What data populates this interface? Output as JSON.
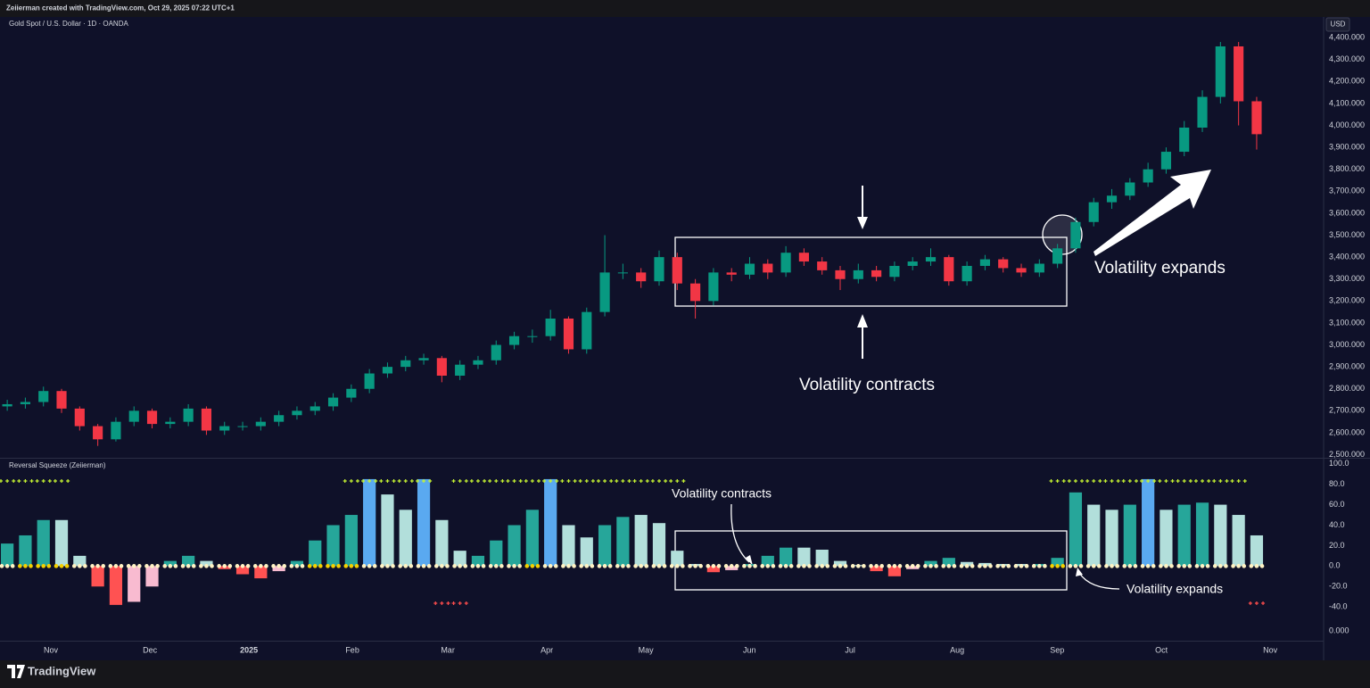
{
  "header": {
    "attribution": "Zeiierman created with TradingView.com, Oct 29, 2025 07:22 UTC+1",
    "symbol": "Gold Spot / U.S. Dollar · 1D · OANDA",
    "currency": "USD",
    "logo": "TradingView"
  },
  "chart_data": [
    {
      "type": "candlestick",
      "up_color": "#089981",
      "down_color": "#f23645",
      "annotations": [
        "Volatility contracts",
        "Volatility expands"
      ],
      "open": [
        2720,
        2730,
        2740,
        2790,
        2710,
        2630,
        2570,
        2650,
        2700,
        2640,
        2650,
        2710,
        2610,
        2630,
        2630,
        2650,
        2680,
        2700,
        2720,
        2760,
        2800,
        2870,
        2900,
        2930,
        2940,
        2860,
        2910,
        2930,
        3000,
        3040,
        3040,
        3120,
        2980,
        3150,
        3330,
        3330,
        3290,
        3400,
        3280,
        3200,
        3330,
        3320,
        3370,
        3330,
        3420,
        3380,
        3340,
        3300,
        3340,
        3310,
        3360,
        3380,
        3400,
        3290,
        3360,
        3390,
        3350,
        3330,
        3370,
        3440,
        3560,
        3650,
        3680,
        3740,
        3800,
        3880,
        3990,
        4130,
        4360,
        4110
      ],
      "high": [
        2750,
        2760,
        2810,
        2800,
        2720,
        2640,
        2670,
        2720,
        2710,
        2670,
        2730,
        2720,
        2650,
        2650,
        2670,
        2700,
        2720,
        2740,
        2780,
        2820,
        2890,
        2920,
        2950,
        2960,
        2950,
        2930,
        2950,
        3020,
        3060,
        3070,
        3160,
        3130,
        3170,
        3500,
        3370,
        3350,
        3430,
        3420,
        3300,
        3350,
        3350,
        3400,
        3390,
        3450,
        3440,
        3400,
        3360,
        3370,
        3360,
        3380,
        3400,
        3440,
        3410,
        3380,
        3410,
        3400,
        3370,
        3390,
        3460,
        3580,
        3670,
        3710,
        3760,
        3830,
        3900,
        4020,
        4160,
        4380,
        4380,
        4130
      ],
      "low": [
        2700,
        2710,
        2720,
        2690,
        2610,
        2540,
        2560,
        2630,
        2620,
        2620,
        2630,
        2590,
        2590,
        2610,
        2610,
        2630,
        2660,
        2680,
        2700,
        2740,
        2780,
        2850,
        2880,
        2910,
        2830,
        2840,
        2890,
        2910,
        2980,
        3010,
        3020,
        2960,
        2960,
        3130,
        3300,
        3260,
        3270,
        3250,
        3120,
        3180,
        3290,
        3300,
        3300,
        3310,
        3360,
        3320,
        3250,
        3280,
        3290,
        3290,
        3340,
        3360,
        3270,
        3270,
        3340,
        3330,
        3310,
        3310,
        3350,
        3420,
        3540,
        3620,
        3660,
        3720,
        3780,
        3860,
        3970,
        4100,
        4000,
        3890
      ],
      "close": [
        2730,
        2740,
        2790,
        2710,
        2630,
        2570,
        2650,
        2700,
        2640,
        2650,
        2710,
        2610,
        2630,
        2630,
        2650,
        2680,
        2700,
        2720,
        2760,
        2800,
        2870,
        2900,
        2930,
        2940,
        2860,
        2910,
        2930,
        3000,
        3040,
        3040,
        3120,
        2980,
        3150,
        3330,
        3330,
        3290,
        3400,
        3280,
        3200,
        3330,
        3320,
        3370,
        3330,
        3420,
        3380,
        3340,
        3300,
        3340,
        3310,
        3360,
        3380,
        3400,
        3290,
        3360,
        3390,
        3350,
        3330,
        3370,
        3440,
        3560,
        3650,
        3680,
        3740,
        3800,
        3880,
        3990,
        4130,
        4360,
        4110,
        3960
      ],
      "xlim": [
        -0.4,
        72.5
      ],
      "xticks": [
        {
          "value": 2.41,
          "label": "Nov"
        },
        {
          "value": 7.88,
          "label": "Dec"
        },
        {
          "value": 13.35,
          "label": "2025"
        },
        {
          "value": 19.06,
          "label": "Feb"
        },
        {
          "value": 24.33,
          "label": "Mar"
        },
        {
          "value": 29.8,
          "label": "Apr"
        },
        {
          "value": 35.27,
          "label": "May"
        },
        {
          "value": 40.99,
          "label": "Jun"
        },
        {
          "value": 46.55,
          "label": "Jul"
        },
        {
          "value": 52.46,
          "label": "Aug"
        },
        {
          "value": 57.98,
          "label": "Sep"
        },
        {
          "value": 63.74,
          "label": "Oct"
        },
        {
          "value": 69.75,
          "label": "Nov"
        }
      ],
      "ylim": [
        2490,
        4490
      ],
      "yticks": [
        {
          "value": 2500,
          "label": "2,500.000"
        },
        {
          "value": 2600,
          "label": "2,600.000"
        },
        {
          "value": 2700,
          "label": "2,700.000"
        },
        {
          "value": 2800,
          "label": "2,800.000"
        },
        {
          "value": 2900,
          "label": "2,900.000"
        },
        {
          "value": 3000,
          "label": "3,000.000"
        },
        {
          "value": 3100,
          "label": "3,100.000"
        },
        {
          "value": 3200,
          "label": "3,200.000"
        },
        {
          "value": 3300,
          "label": "3,300.000"
        },
        {
          "value": 3400,
          "label": "3,400.000"
        },
        {
          "value": 3500,
          "label": "3,500.000"
        },
        {
          "value": 3600,
          "label": "3,600.000"
        },
        {
          "value": 3700,
          "label": "3,700.000"
        },
        {
          "value": 3800,
          "label": "3,800.000"
        },
        {
          "value": 3900,
          "label": "3,900.000"
        },
        {
          "value": 4000,
          "label": "4,000.000"
        },
        {
          "value": 4100,
          "label": "4,100.000"
        },
        {
          "value": 4200,
          "label": "4,200.000"
        },
        {
          "value": 4300,
          "label": "4,300.000"
        },
        {
          "value": 4400,
          "label": "4,400.000"
        }
      ]
    },
    {
      "type": "bar",
      "title": "Reversal Squeeze (Zeiierman)",
      "annotations": [
        "Volatility contracts",
        "Volatility expands"
      ],
      "values": [
        22,
        30,
        45,
        45,
        10,
        -20,
        -38,
        -35,
        -20,
        5,
        10,
        5,
        -3,
        -8,
        -12,
        -5,
        5,
        25,
        40,
        50,
        85,
        70,
        55,
        85,
        45,
        15,
        10,
        25,
        40,
        55,
        85,
        40,
        28,
        40,
        48,
        50,
        42,
        15,
        2,
        -6,
        -4,
        2,
        10,
        18,
        18,
        16,
        5,
        1,
        -5,
        -10,
        -3,
        5,
        8,
        4,
        3,
        2,
        2,
        2,
        8,
        72,
        60,
        55,
        60,
        85,
        55,
        60,
        62,
        60,
        50,
        30
      ],
      "colors": [
        "#26a69a",
        "#26a69a",
        "#26a69a",
        "#b2dfdb",
        "#b2dfdb",
        "#ff5252",
        "#ff5252",
        "#f8bbd0",
        "#f8bbd0",
        "#26a69a",
        "#26a69a",
        "#b2dfdb",
        "#ff5252",
        "#ff5252",
        "#ff5252",
        "#f8bbd0",
        "#26a69a",
        "#26a69a",
        "#26a69a",
        "#26a69a",
        "#5aa9f0",
        "#b2dfdb",
        "#b2dfdb",
        "#5aa9f0",
        "#b2dfdb",
        "#b2dfdb",
        "#26a69a",
        "#26a69a",
        "#26a69a",
        "#26a69a",
        "#5aa9f0",
        "#b2dfdb",
        "#b2dfdb",
        "#26a69a",
        "#26a69a",
        "#b2dfdb",
        "#b2dfdb",
        "#b2dfdb",
        "#b2dfdb",
        "#ff5252",
        "#f8bbd0",
        "#26a69a",
        "#26a69a",
        "#26a69a",
        "#b2dfdb",
        "#b2dfdb",
        "#b2dfdb",
        "#b2dfdb",
        "#ff5252",
        "#ff5252",
        "#f8bbd0",
        "#26a69a",
        "#26a69a",
        "#b2dfdb",
        "#b2dfdb",
        "#b2dfdb",
        "#b2dfdb",
        "#26a69a",
        "#26a69a",
        "#26a69a",
        "#b2dfdb",
        "#b2dfdb",
        "#26a69a",
        "#5aa9f0",
        "#b2dfdb",
        "#26a69a",
        "#26a69a",
        "#b2dfdb",
        "#b2dfdb",
        "#b2dfdb"
      ],
      "buy_signals": [
        0,
        1,
        2,
        3,
        19,
        20,
        21,
        22,
        23,
        25,
        26,
        27,
        28,
        29,
        30,
        31,
        32,
        33,
        34,
        35,
        36,
        37,
        58,
        59,
        60,
        61,
        62,
        63,
        64,
        65,
        66,
        67,
        68
      ],
      "sell_signals": [
        24,
        25,
        69
      ],
      "buy_color": "#c6f432",
      "sell_color": "#ff4d4d",
      "squeeze_on": [
        1,
        2,
        3,
        17,
        18,
        19,
        29,
        58
      ],
      "dot_color": "#fff3c4",
      "squeeze_color": "#f5d000",
      "ylim": [
        -73,
        105
      ],
      "yticks": [
        {
          "value": 100,
          "label": "100.0"
        },
        {
          "value": 80,
          "label": "80.0"
        },
        {
          "value": 60,
          "label": "60.0"
        },
        {
          "value": 40,
          "label": "40.0"
        },
        {
          "value": 20,
          "label": "20.0"
        },
        {
          "value": 0,
          "label": "0.0"
        },
        {
          "value": -20,
          "label": "-20.0"
        },
        {
          "value": -40,
          "label": "-40.0"
        }
      ],
      "extra_label": "0.000"
    }
  ]
}
